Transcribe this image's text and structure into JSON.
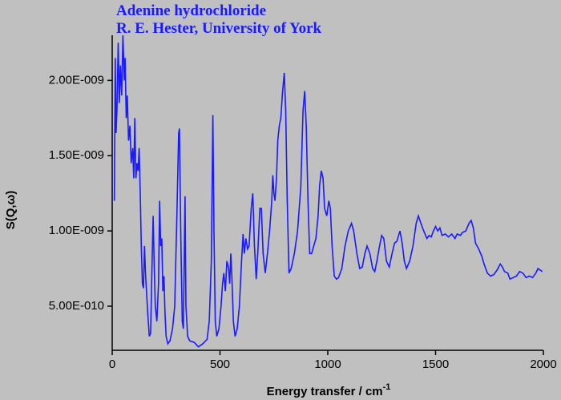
{
  "chart_data": {
    "type": "line",
    "title": "Adenine hydrochloride",
    "subtitle": "R. E. Hester, University of York",
    "ylabel": "S(Q,ω)",
    "xlabel": "Energy transfer / cm",
    "xlabel_superscript": "-1",
    "xlim": [
      0,
      2000
    ],
    "xticks": [
      0,
      500,
      1000,
      1500,
      2000
    ],
    "ylim": [
      2.07e-10,
      2.3e-09
    ],
    "yticks": [
      {
        "value": 5e-10,
        "label": "5.00E-010"
      },
      {
        "value": 1e-09,
        "label": "1.00E-009"
      },
      {
        "value": 1.5e-09,
        "label": "1.50E-009"
      },
      {
        "value": 2e-09,
        "label": "2.00E-009"
      }
    ],
    "series": [
      {
        "name": "S(Q,ω)",
        "color": "#1a1aff",
        "x": [
          10,
          14,
          18,
          22,
          28,
          33,
          38,
          44,
          50,
          56,
          60,
          65,
          70,
          76,
          82,
          88,
          95,
          100,
          105,
          110,
          115,
          120,
          125,
          130,
          135,
          140,
          145,
          150,
          155,
          165,
          172,
          178,
          185,
          190,
          195,
          200,
          207,
          215,
          220,
          225,
          230,
          235,
          240,
          245,
          250,
          258,
          268,
          280,
          290,
          300,
          308,
          312,
          318,
          325,
          330,
          338,
          342,
          350,
          360,
          380,
          400,
          420,
          440,
          450,
          460,
          467,
          472,
          478,
          485,
          495,
          505,
          512,
          518,
          525,
          532,
          540,
          545,
          550,
          555,
          562,
          570,
          580,
          590,
          600,
          607,
          613,
          620,
          628,
          635,
          645,
          652,
          660,
          668,
          675,
          685,
          692,
          700,
          710,
          720,
          730,
          740,
          745,
          750,
          755,
          762,
          768,
          775,
          782,
          790,
          798,
          805,
          812,
          820,
          830,
          845,
          860,
          875,
          885,
          893,
          900,
          908,
          916,
          925,
          935,
          945,
          955,
          962,
          970,
          978,
          985,
          995,
          1005,
          1012,
          1020,
          1030,
          1040,
          1050,
          1065,
          1080,
          1095,
          1110,
          1120,
          1135,
          1148,
          1160,
          1172,
          1182,
          1195,
          1208,
          1218,
          1228,
          1240,
          1250,
          1260,
          1272,
          1285,
          1298,
          1310,
          1320,
          1335,
          1345,
          1355,
          1365,
          1380,
          1395,
          1410,
          1420,
          1432,
          1445,
          1460,
          1470,
          1480,
          1490,
          1500,
          1510,
          1520,
          1530,
          1545,
          1560,
          1575,
          1590,
          1600,
          1615,
          1625,
          1640,
          1655,
          1665,
          1675,
          1685,
          1700,
          1715,
          1725,
          1740,
          1755,
          1770,
          1785,
          1800,
          1810,
          1820,
          1835,
          1845,
          1860,
          1875,
          1890,
          1905,
          1920,
          1935,
          1950,
          1965,
          1975,
          1985,
          1995
        ],
        "values": [
          1.2e-09,
          2.15e-09,
          1.65e-09,
          1.8e-09,
          2.25e-09,
          1.85e-09,
          2.1e-09,
          1.9e-09,
          2.3e-09,
          2e-09,
          2.15e-09,
          1.75e-09,
          1.9e-09,
          1.6e-09,
          1.7e-09,
          1.45e-09,
          1.55e-09,
          1.35e-09,
          1.75e-09,
          1.35e-09,
          1.45e-09,
          1.4e-09,
          1.55e-09,
          1.25e-09,
          9e-10,
          6.5e-10,
          6.2e-10,
          9e-10,
          7e-10,
          4.5e-10,
          3e-10,
          3.2e-10,
          8e-10,
          1.1e-09,
          7.5e-10,
          5e-10,
          4e-10,
          6.5e-10,
          1.2e-09,
          9e-10,
          9.5e-10,
          6e-10,
          7e-10,
          4.5e-10,
          3e-10,
          2.5e-10,
          2.7e-10,
          3.5e-10,
          5e-10,
          1.1e-09,
          1.65e-09,
          1.68e-09,
          1e-09,
          4e-10,
          3.5e-10,
          1.23e-09,
          5e-10,
          3e-10,
          2.7e-10,
          2.6e-10,
          2.3e-10,
          2.5e-10,
          2.8e-10,
          4e-10,
          8e-10,
          1.77e-09,
          1e-09,
          4e-10,
          3e-10,
          3.5e-10,
          5e-10,
          6.5e-10,
          7.2e-10,
          6e-10,
          8e-10,
          7.5e-10,
          6.5e-10,
          8.5e-10,
          7e-10,
          4e-10,
          3e-10,
          3.5e-10,
          5e-10,
          8e-10,
          9.8e-10,
          8.5e-10,
          9.5e-10,
          8.8e-10,
          9e-10,
          1.15e-09,
          1.25e-09,
          9e-10,
          6.8e-10,
          8.5e-10,
          1.15e-09,
          1.15e-09,
          8.5e-10,
          7.2e-10,
          8.5e-10,
          1e-09,
          1.2e-09,
          1.37e-09,
          1.25e-09,
          1.2e-09,
          1.35e-09,
          1.6e-09,
          1.7e-09,
          1.75e-09,
          1.92e-09,
          2.05e-09,
          1.8e-09,
          1.2e-09,
          7.2e-10,
          7.5e-10,
          8.5e-10,
          1e-09,
          1.3e-09,
          1.8e-09,
          1.93e-09,
          1.7e-09,
          1.2e-09,
          8.5e-10,
          8.5e-10,
          9e-10,
          9.5e-10,
          1.1e-09,
          1.3e-09,
          1.4e-09,
          1.35e-09,
          1.15e-09,
          1.1e-09,
          1.2e-09,
          1.15e-09,
          9e-10,
          7e-10,
          6.8e-10,
          6.9e-10,
          7.5e-10,
          9e-10,
          1e-09,
          1.05e-09,
          1e-09,
          8.5e-10,
          7.5e-10,
          7.6e-10,
          8.5e-10,
          9e-10,
          8.5e-10,
          7.5e-10,
          7.3e-10,
          8e-10,
          9e-10,
          9.7e-10,
          9.5e-10,
          8e-10,
          7.6e-10,
          8.5e-10,
          9.2e-10,
          9.3e-10,
          1e-09,
          9.2e-10,
          8e-10,
          7.5e-10,
          8e-10,
          9e-10,
          1.05e-09,
          1.1e-09,
          1.05e-09,
          1e-09,
          9.5e-10,
          9.7e-10,
          9.6e-10,
          1e-09,
          1.03e-09,
          1e-09,
          1.02e-09,
          9.7e-10,
          9.8e-10,
          9.6e-10,
          9.8e-10,
          9.5e-10,
          9.8e-10,
          9.7e-10,
          9.9e-10,
          1e-09,
          1.05e-09,
          1.07e-09,
          1.02e-09,
          9.2e-10,
          8.8e-10,
          8.3e-10,
          7.8e-10,
          7.2e-10,
          7e-10,
          7.1e-10,
          7.4e-10,
          7.8e-10,
          7.6e-10,
          7.3e-10,
          7.2e-10,
          6.8e-10,
          6.9e-10,
          7e-10,
          7.3e-10,
          7.2e-10,
          6.9e-10,
          7e-10,
          6.9e-10,
          7.2e-10,
          7.5e-10,
          7.4e-10,
          7.3e-10
        ]
      }
    ]
  }
}
